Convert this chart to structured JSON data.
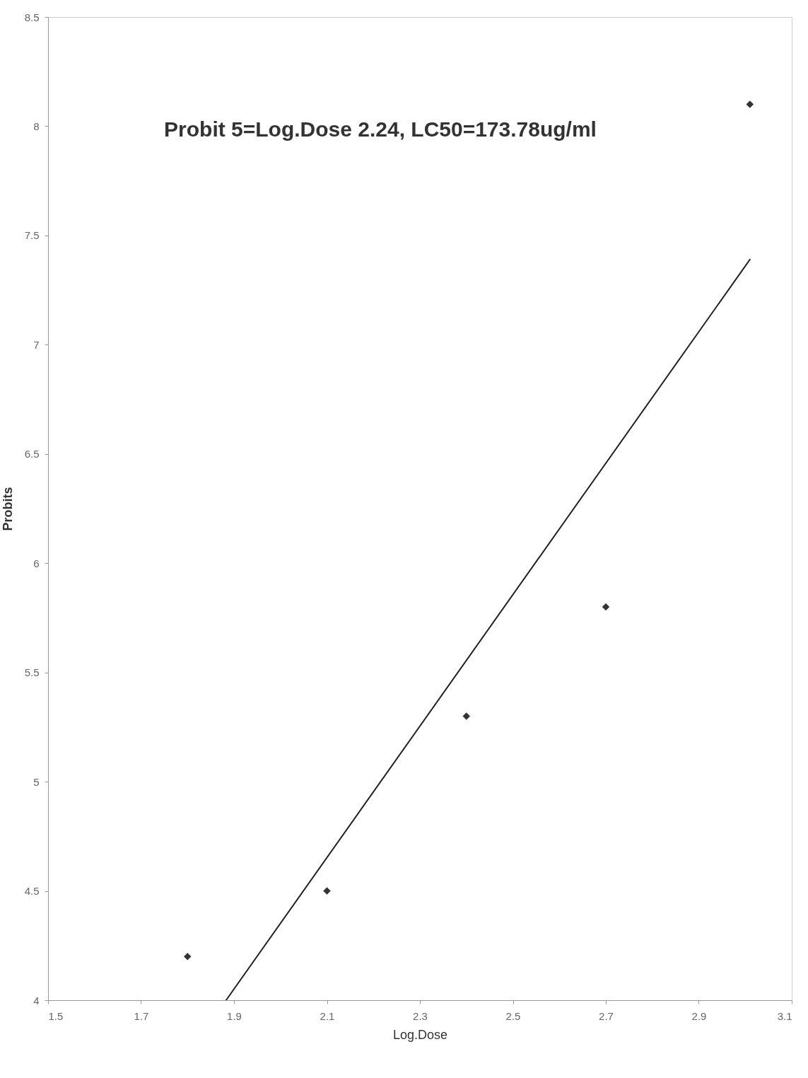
{
  "chart_data": {
    "type": "scatter",
    "xlabel": "Log.Dose",
    "ylabel": "Probits",
    "annotations": [
      "Probit 5=Log.Dose 2.24, LC50=173.78ug/ml"
    ],
    "x": [
      1.8,
      2.1,
      2.4,
      2.7,
      3.01
    ],
    "series": [
      {
        "color": "#333333",
        "values": [
          4.2,
          4.5,
          5.3,
          5.8,
          8.1
        ],
        "marker": "diamond"
      },
      {
        "type": "line",
        "color": "#222222",
        "x": [
          1.883,
          3.01
        ],
        "values": [
          4.0,
          7.39
        ],
        "line_style": "solid"
      }
    ],
    "xlim": [
      1.5,
      3.1
    ],
    "xticks": [
      1.5,
      1.7,
      1.9,
      2.1,
      2.3,
      2.5,
      2.7,
      2.9,
      3.1
    ],
    "ylim": [
      4,
      8.5
    ],
    "yticks": [
      4,
      4.5,
      5,
      5.5,
      6,
      6.5,
      7,
      7.5,
      8,
      8.5
    ],
    "grid": false
  }
}
